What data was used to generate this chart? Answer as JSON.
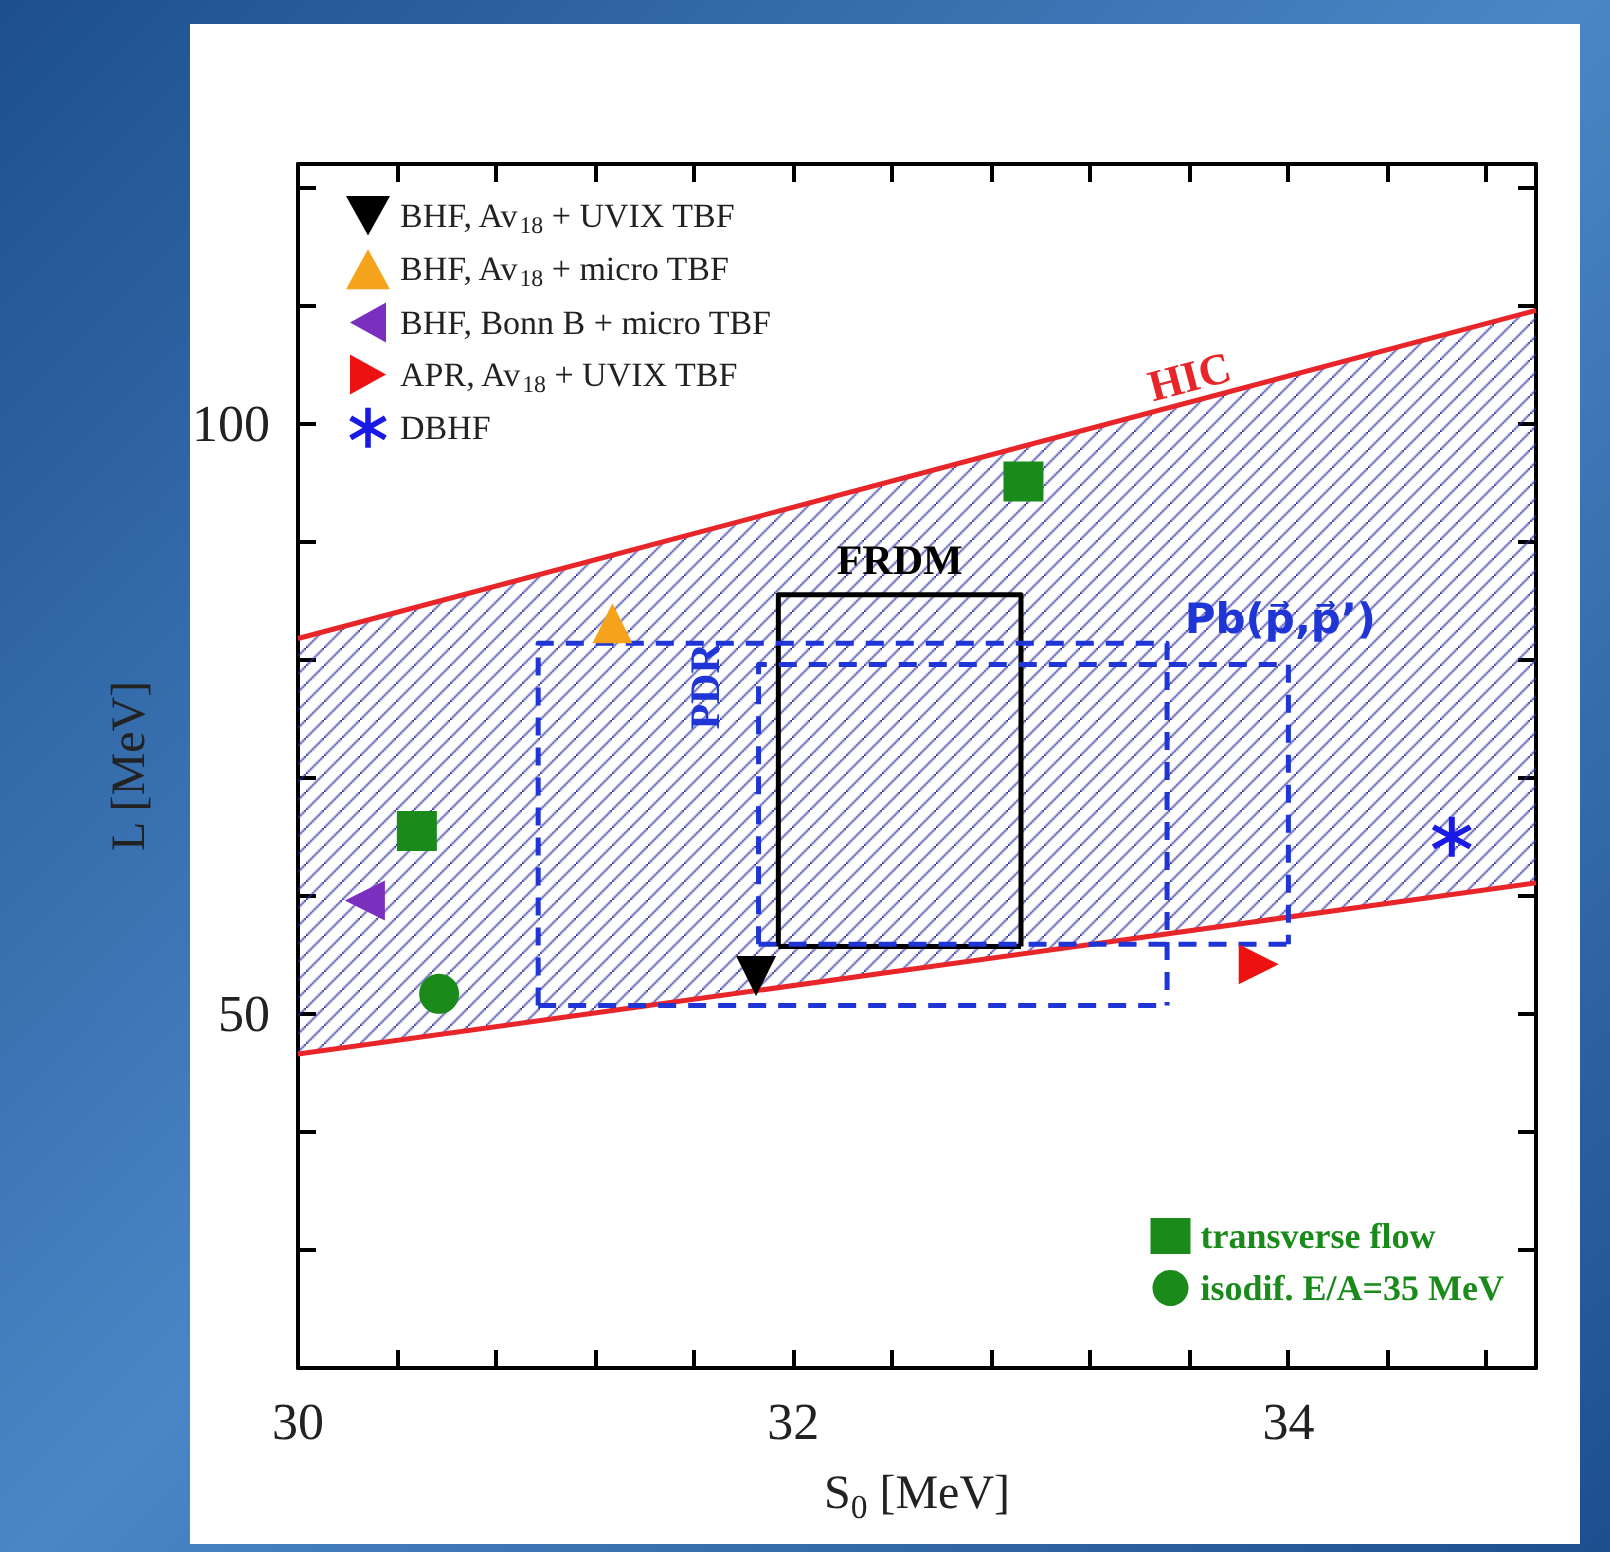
{
  "chart_data": {
    "type": "scatter",
    "xlabel": "S$_{0}$ [MeV]",
    "ylabel": "L [MeV]",
    "xlim": [
      30,
      35
    ],
    "xticks": [
      30,
      {
        "value": 30.4,
        "label": null
      },
      {
        "value": 30.8,
        "label": null
      },
      {
        "value": 31.2,
        "label": null
      },
      {
        "value": 31.6,
        "label": null
      },
      32,
      {
        "value": 32.4,
        "label": null
      },
      {
        "value": 32.8,
        "label": null
      },
      {
        "value": 33.2,
        "label": null
      },
      {
        "value": 33.6,
        "label": null
      },
      34,
      {
        "value": 34.4,
        "label": null
      },
      {
        "value": 34.8,
        "label": null
      }
    ],
    "ylim": [
      20,
      122
    ],
    "yticks": [
      {
        "value": 20,
        "label": null
      },
      {
        "value": 30,
        "label": null
      },
      {
        "value": 40,
        "label": null
      },
      50,
      {
        "value": 60,
        "label": null
      },
      {
        "value": 70,
        "label": null
      },
      {
        "value": 80,
        "label": null
      },
      {
        "value": 90,
        "label": null
      },
      100,
      {
        "value": 110,
        "label": null
      },
      {
        "value": 120,
        "label": null
      }
    ],
    "grid": false,
    "legend": "top left",
    "series": [
      {
        "name": "HIC",
        "type": "line",
        "color": "#e8262a",
        "marker": "none",
        "line_style": "solid",
        "x": [
          30,
          35
        ],
        "values": [
          81.8,
          109.6
        ],
        "lower": [
          46.6,
          61.1
        ],
        "upper": [
          81.8,
          109.6
        ]
      },
      {
        "type": "line",
        "color": "#e8262a",
        "marker": "none",
        "line_style": "solid",
        "x": [
          30,
          35
        ],
        "values": [
          46.6,
          61.1
        ]
      },
      {
        "name": "FRDM",
        "type": "line",
        "color": "#000000",
        "marker": "none",
        "line_style": "solid",
        "x": [
          31.94,
          31.94,
          32.92,
          32.92
        ],
        "values": [
          55.7,
          85.5,
          85.5,
          55.7
        ]
      },
      {
        "type": "line",
        "color": "#000000",
        "marker": "none",
        "line_style": "solid",
        "x": [
          31.94,
          32.92
        ],
        "values": [
          55.7,
          55.7
        ]
      },
      {
        "name": "PDR",
        "type": "line",
        "color": "#1f35d6",
        "marker": "none",
        "line_style": "dashed",
        "x": [
          30.97,
          30.97,
          33.51,
          33.51
        ],
        "values": [
          50.7,
          81.4,
          81.4,
          50.7
        ]
      },
      {
        "type": "line",
        "color": "#1f35d6",
        "marker": "none",
        "line_style": "dashed",
        "x": [
          30.97,
          33.51
        ],
        "values": [
          50.7,
          50.7
        ]
      },
      {
        "name": "Pb(p⃗,p⃗’)",
        "type": "line",
        "color": "#1f35d6",
        "marker": "none",
        "line_style": "dashed",
        "x": [
          31.86,
          31.86,
          34.0,
          34.0
        ],
        "values": [
          55.9,
          79.6,
          79.6,
          55.9
        ]
      },
      {
        "type": "line",
        "color": "#1f35d6",
        "marker": "none",
        "line_style": "dashed",
        "x": [
          31.86,
          34.0
        ],
        "values": [
          55.9,
          55.9
        ]
      },
      {
        "name": "BHF, Av$_{18}$ + UVIX TBF",
        "color": "#000000",
        "marker": "triangle-down",
        "x": [
          31.85
        ],
        "values": [
          53.2
        ]
      },
      {
        "name": "BHF, Av$_{18}$ + micro TBF",
        "color": "#f5a31a",
        "marker": "triangle",
        "x": [
          31.27
        ],
        "values": [
          83.1
        ]
      },
      {
        "name": "BHF, Bonn B + micro TBF",
        "color": "#7b2fbf",
        "marker": "triangle-left",
        "x": [
          30.27
        ],
        "values": [
          59.6
        ]
      },
      {
        "name": "APR, Av$_{18}$ + UVIX TBF",
        "color": "#ee1111",
        "marker": "triangle-right",
        "x": [
          33.88
        ],
        "values": [
          54.2
        ]
      },
      {
        "name": "DBHF",
        "color": "#1a1ae6",
        "marker": "cross",
        "x": [
          34.66
        ],
        "values": [
          65.0
        ]
      },
      {
        "name": "transverse flow",
        "color": "#1a8a1a",
        "marker": "square",
        "x": [
          30.48,
          32.93
        ],
        "values": [
          65.5,
          95.1
        ]
      },
      {
        "name": "isodif. E/A=35 MeV",
        "color": "#1a8a1a",
        "marker": "circle",
        "x": [
          30.57
        ],
        "values": [
          51.7
        ]
      }
    ]
  }
}
